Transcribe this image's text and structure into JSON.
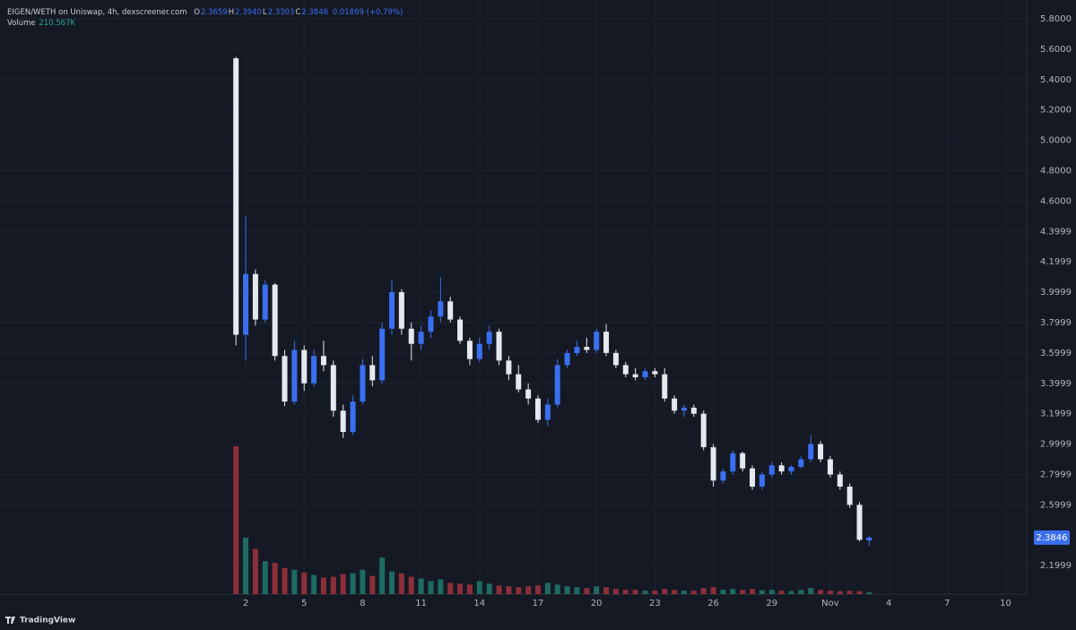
{
  "chart_data": {
    "type": "candlestick",
    "title": "EIGEN/WETH on Uniswap, 4h, dexscreener.com",
    "ohlc": [
      {
        "key": "O",
        "value": "2.3659"
      },
      {
        "key": "H",
        "value": "2.3940"
      },
      {
        "key": "L",
        "value": "2.3303"
      },
      {
        "key": "C",
        "value": "2.3846"
      }
    ],
    "change": "0.01869 (+0.79%)",
    "volume_title": "Volume",
    "volume_value": "210.567K",
    "footer": "TradingView",
    "up_color": "#3a6ff0",
    "down_color": "#e6e8ef",
    "volume_up_color": "#1d6b62",
    "volume_down_color": "#8c2f3a",
    "grid": true,
    "xlim": [
      -10.61,
      42.08
    ],
    "ylim": [
      2.012,
      5.924
    ],
    "xticks": [
      2,
      5,
      8,
      11,
      14,
      17,
      20,
      23,
      26,
      29,
      {
        "value": 32,
        "label": "Nov"
      },
      {
        "value": 35,
        "label": "4"
      },
      {
        "value": 38,
        "label": "7"
      },
      {
        "value": 41,
        "label": "10"
      }
    ],
    "yticks": [
      {
        "value": 5.8,
        "label": "5.8000"
      },
      {
        "value": 5.6,
        "label": "5.6000"
      },
      {
        "value": 5.4,
        "label": "5.4000"
      },
      {
        "value": 5.2,
        "label": "5.2000"
      },
      {
        "value": 5.0,
        "label": "5.0000"
      },
      {
        "value": 4.8,
        "label": "4.8000"
      },
      {
        "value": 4.6,
        "label": "4.6000"
      },
      4.3999,
      4.1999,
      3.9999,
      3.7999,
      3.5999,
      3.3999,
      3.1999,
      2.9999,
      2.7999,
      2.5999,
      2.1999
    ],
    "x": [
      1.5,
      2,
      2.5,
      3,
      3.5,
      4,
      4.5,
      5,
      5.5,
      6,
      6.5,
      7,
      7.5,
      8,
      8.5,
      9,
      9.5,
      10,
      10.5,
      11,
      11.5,
      12,
      12.5,
      13,
      13.5,
      14,
      14.5,
      15,
      15.5,
      16,
      16.5,
      17,
      17.5,
      18,
      18.5,
      19,
      19.5,
      20,
      20.5,
      21,
      21.5,
      22,
      22.5,
      23,
      23.5,
      24,
      24.5,
      25,
      25.5,
      26,
      26.5,
      27,
      27.5,
      28,
      28.5,
      29,
      29.5,
      30,
      30.5,
      31,
      31.5,
      32,
      32.5,
      33,
      33.5,
      34
    ],
    "open": [
      5.54,
      3.72,
      4.12,
      3.82,
      4.05,
      3.58,
      3.28,
      3.62,
      3.4,
      3.58,
      3.52,
      3.22,
      3.08,
      3.28,
      3.52,
      3.42,
      3.76,
      4.0,
      3.76,
      3.66,
      3.74,
      3.84,
      3.94,
      3.82,
      3.68,
      3.56,
      3.66,
      3.74,
      3.55,
      3.46,
      3.36,
      3.3,
      3.16,
      3.26,
      3.52,
      3.6,
      3.64,
      3.62,
      3.74,
      3.6,
      3.52,
      3.46,
      3.44,
      3.48,
      3.46,
      3.3,
      3.22,
      3.24,
      3.2,
      2.98,
      2.76,
      2.82,
      2.94,
      2.84,
      2.72,
      2.8,
      2.86,
      2.82,
      2.85,
      2.9,
      3.0,
      2.9,
      2.8,
      2.72,
      2.6,
      2.3659
    ],
    "high": [
      5.55,
      4.5,
      4.15,
      4.08,
      4.06,
      3.62,
      3.68,
      3.65,
      3.62,
      3.68,
      3.55,
      3.26,
      3.32,
      3.56,
      3.58,
      3.8,
      4.08,
      4.02,
      3.8,
      3.78,
      3.88,
      4.1,
      3.97,
      3.84,
      3.7,
      3.7,
      3.78,
      3.76,
      3.58,
      3.52,
      3.4,
      3.32,
      3.3,
      3.56,
      3.62,
      3.68,
      3.7,
      3.76,
      3.79,
      3.62,
      3.54,
      3.5,
      3.5,
      3.5,
      3.5,
      3.32,
      3.26,
      3.26,
      3.22,
      3.0,
      2.84,
      2.96,
      2.95,
      2.86,
      2.82,
      2.88,
      2.88,
      2.86,
      2.92,
      3.06,
      3.02,
      2.92,
      2.82,
      2.74,
      2.62,
      2.394
    ],
    "low": [
      3.65,
      3.55,
      3.78,
      3.8,
      3.55,
      3.25,
      3.26,
      3.35,
      3.38,
      3.48,
      3.18,
      3.04,
      3.06,
      3.26,
      3.38,
      3.4,
      3.72,
      3.72,
      3.55,
      3.62,
      3.7,
      3.8,
      3.8,
      3.66,
      3.52,
      3.54,
      3.62,
      3.52,
      3.42,
      3.34,
      3.26,
      3.14,
      3.12,
      3.24,
      3.5,
      3.58,
      3.6,
      3.6,
      3.58,
      3.5,
      3.44,
      3.42,
      3.42,
      3.44,
      3.28,
      3.2,
      3.18,
      3.18,
      2.96,
      2.72,
      2.74,
      2.8,
      2.82,
      2.7,
      2.7,
      2.78,
      2.8,
      2.8,
      2.84,
      2.88,
      2.88,
      2.78,
      2.7,
      2.58,
      2.36,
      2.3303
    ],
    "close": [
      3.72,
      4.12,
      3.82,
      4.05,
      3.58,
      3.28,
      3.62,
      3.4,
      3.58,
      3.52,
      3.22,
      3.08,
      3.28,
      3.52,
      3.42,
      3.76,
      4.0,
      3.76,
      3.66,
      3.74,
      3.84,
      3.94,
      3.82,
      3.68,
      3.56,
      3.66,
      3.74,
      3.55,
      3.46,
      3.36,
      3.3,
      3.16,
      3.26,
      3.52,
      3.6,
      3.64,
      3.62,
      3.74,
      3.6,
      3.52,
      3.46,
      3.44,
      3.48,
      3.46,
      3.3,
      3.22,
      3.24,
      3.2,
      2.98,
      2.76,
      2.82,
      2.94,
      2.84,
      2.72,
      2.8,
      2.86,
      2.82,
      2.85,
      2.9,
      3.0,
      2.9,
      2.8,
      2.72,
      2.6,
      2.37,
      2.3846
    ],
    "volume": [
      17000000,
      6500000,
      5200000,
      3800000,
      3600000,
      3000000,
      2800000,
      2500000,
      2200000,
      1900000,
      2000000,
      2300000,
      2400000,
      2800000,
      2100000,
      4200000,
      2600000,
      2400000,
      2000000,
      1800000,
      1500000,
      1700000,
      1300000,
      1200000,
      1100000,
      1500000,
      1200000,
      1000000,
      900000,
      800000,
      900000,
      1000000,
      1300000,
      1100000,
      900000,
      800000,
      700000,
      900000,
      800000,
      600000,
      500000,
      500000,
      400000,
      400000,
      600000,
      500000,
      400000,
      400000,
      700000,
      800000,
      500000,
      600000,
      500000,
      600000,
      450000,
      500000,
      400000,
      350000,
      500000,
      700000,
      500000,
      400000,
      350000,
      400000,
      350000,
      210567
    ]
  }
}
